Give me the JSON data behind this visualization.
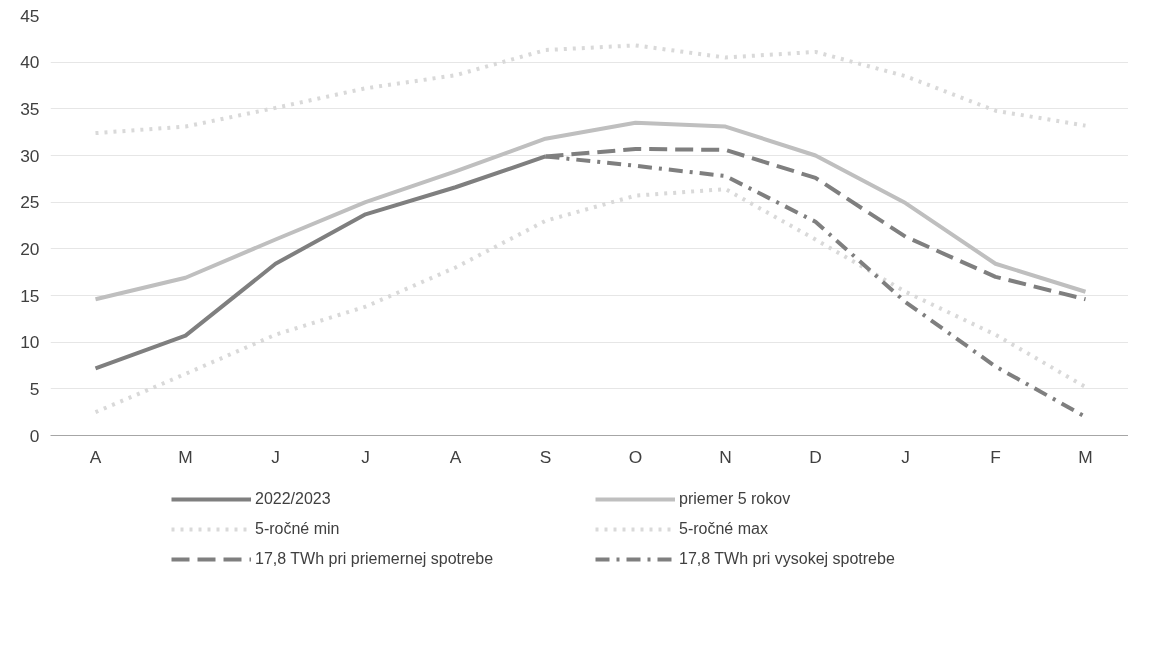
{
  "chart_data": {
    "type": "line",
    "categories": [
      "A",
      "M",
      "J",
      "J",
      "A",
      "S",
      "O",
      "N",
      "D",
      "J",
      "F",
      "M"
    ],
    "ylim": [
      0,
      45
    ],
    "yticks": [
      0,
      5,
      10,
      15,
      20,
      25,
      30,
      35,
      40,
      45
    ],
    "grid": "y",
    "legend": "bottom",
    "marker": "none",
    "series": [
      {
        "name": "2022/2023",
        "color": "#7f7f7f",
        "line_style": "solid",
        "values": [
          7.2,
          10.7,
          18.4,
          23.7,
          26.6,
          29.9,
          null,
          null,
          null,
          null,
          null,
          null
        ]
      },
      {
        "name": "priemer 5 rokov",
        "color": "#bfbfbf",
        "line_style": "solid",
        "values": [
          14.6,
          16.9,
          21.0,
          25.0,
          28.3,
          31.8,
          33.5,
          33.1,
          30.0,
          24.9,
          18.4,
          15.4
        ]
      },
      {
        "name": "5-ročné min",
        "color": "#d9d9d9",
        "line_style": "dotted",
        "values": [
          2.5,
          6.6,
          10.8,
          13.8,
          18.0,
          23.0,
          25.7,
          26.4,
          21.0,
          15.4,
          10.8,
          5.2
        ]
      },
      {
        "name": "5-ročné max",
        "color": "#d9d9d9",
        "line_style": "dotted",
        "values": [
          32.4,
          33.1,
          35.1,
          37.2,
          38.6,
          41.3,
          41.8,
          40.5,
          41.1,
          38.5,
          34.8,
          33.2
        ]
      },
      {
        "name": "17,8 TWh pri priemernej spotrebe",
        "color": "#7f7f7f",
        "line_style": "dashed",
        "values": [
          null,
          null,
          null,
          null,
          null,
          29.9,
          30.7,
          30.6,
          27.6,
          21.3,
          17.0,
          14.6
        ]
      },
      {
        "name": "17,8 TWh pri vysokej spotrebe",
        "color": "#7f7f7f",
        "line_style": "dashdot",
        "values": [
          null,
          null,
          null,
          null,
          null,
          29.9,
          28.9,
          27.8,
          22.9,
          14.3,
          7.4,
          2.0
        ]
      }
    ]
  }
}
